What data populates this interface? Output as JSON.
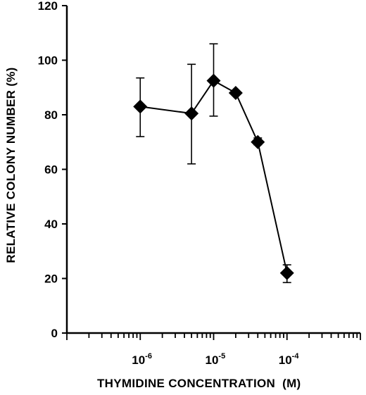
{
  "chart_data": {
    "type": "line",
    "title": "",
    "xlabel": "THYMIDINE CONCENTRATION  (M)",
    "ylabel": "RELATIVE COLONY NUMBER (%)",
    "x_scale": "log",
    "xlim": [
      1e-07,
      0.001
    ],
    "ylim": [
      0,
      120
    ],
    "grid": false,
    "legend": "none",
    "x_tick_labels": [
      {
        "base": "10",
        "exp": "-6",
        "value": 1e-06
      },
      {
        "base": "10",
        "exp": "-5",
        "value": 1e-05
      },
      {
        "base": "10",
        "exp": "-4",
        "value": 0.0001
      }
    ],
    "y_ticks": [
      0,
      20,
      40,
      60,
      80,
      100,
      120
    ],
    "series": [
      {
        "marker": "diamond",
        "color": "#000000",
        "points": [
          {
            "x": 1e-06,
            "y": 83,
            "err_low": 72,
            "err_high": 93.5
          },
          {
            "x": 5e-06,
            "y": 80.5,
            "err_low": 62,
            "err_high": 98.5
          },
          {
            "x": 1e-05,
            "y": 92.5,
            "err_low": 79.5,
            "err_high": 106
          },
          {
            "x": 2e-05,
            "y": 88,
            "err_low": 88,
            "err_high": 88
          },
          {
            "x": 4e-05,
            "y": 70,
            "err_low": 69,
            "err_high": 71.5
          },
          {
            "x": 0.0001,
            "y": 22,
            "err_low": 18.5,
            "err_high": 25
          }
        ]
      }
    ]
  }
}
